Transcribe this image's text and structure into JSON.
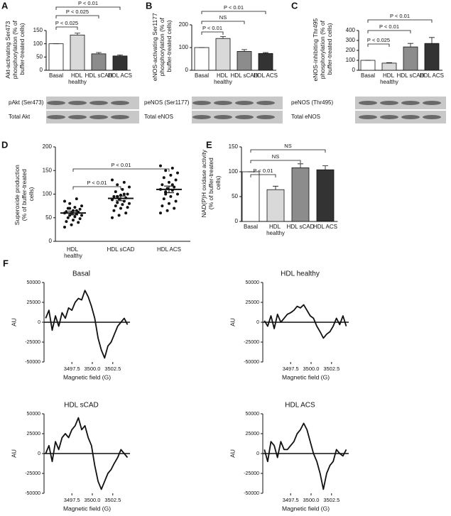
{
  "chart_data": [
    {
      "type": "bar",
      "panel": "A",
      "y_label": "Akt-activating Ser473 phosphorylation (% of buffer-treated cells)",
      "categories": [
        "Basal",
        "HDL healthy",
        "HDL sCAD",
        "HDL ACS"
      ],
      "values": [
        100,
        133,
        62,
        54
      ],
      "errors": [
        0,
        7,
        5,
        4
      ],
      "colors": [
        "#ffffff",
        "#d9d9d9",
        "#8c8c8c",
        "#333333"
      ],
      "ylim": [
        0,
        150
      ],
      "yticks": [
        0,
        50,
        100,
        150
      ],
      "comparisons": [
        {
          "groups": [
            "Basal",
            "HDL healthy"
          ],
          "label": "P < 0.025"
        },
        {
          "groups": [
            "Basal",
            "HDL sCAD"
          ],
          "label": "P < 0.025"
        },
        {
          "groups": [
            "Basal",
            "HDL ACS"
          ],
          "label": "P < 0.01"
        }
      ],
      "blot_labels": [
        "pAkt (Ser473)",
        "Total Akt"
      ]
    },
    {
      "type": "bar",
      "panel": "B",
      "y_label": "eNOS-activating Ser1177 phosphorylation (% of buffer-treated cells)",
      "categories": [
        "Basal",
        "HDL healthy",
        "HDL sCAD",
        "HDL ACS"
      ],
      "values": [
        100,
        140,
        83,
        74
      ],
      "errors": [
        0,
        8,
        8,
        4
      ],
      "colors": [
        "#ffffff",
        "#d9d9d9",
        "#8c8c8c",
        "#333333"
      ],
      "ylim": [
        0,
        200
      ],
      "yticks": [
        0,
        100,
        200
      ],
      "comparisons": [
        {
          "groups": [
            "Basal",
            "HDL healthy"
          ],
          "label": "P < 0.01"
        },
        {
          "groups": [
            "Basal",
            "HDL sCAD"
          ],
          "label": "NS"
        },
        {
          "groups": [
            "Basal",
            "HDL ACS"
          ],
          "label": "P < 0.01"
        }
      ],
      "blot_labels": [
        "peNOS (Ser1177)",
        "Total eNOS"
      ]
    },
    {
      "type": "bar",
      "panel": "C",
      "y_label": "eNOS-inhibiting Thr495 phosphorylation (% of buffer-treated cells)",
      "categories": [
        "Basal",
        "HDL healthy",
        "HDL sCAD",
        "HDL ACS"
      ],
      "values": [
        100,
        72,
        235,
        270
      ],
      "errors": [
        0,
        5,
        35,
        60
      ],
      "colors": [
        "#ffffff",
        "#d9d9d9",
        "#8c8c8c",
        "#333333"
      ],
      "ylim": [
        0,
        400
      ],
      "yticks": [
        0,
        100,
        200,
        300,
        400
      ],
      "comparisons": [
        {
          "groups": [
            "Basal",
            "HDL healthy"
          ],
          "label": "P < 0.025"
        },
        {
          "groups": [
            "Basal",
            "HDL sCAD"
          ],
          "label": "P < 0.01"
        },
        {
          "groups": [
            "Basal",
            "HDL ACS"
          ],
          "label": "P < 0.01"
        }
      ],
      "blot_labels": [
        "peNOS (Thr495)",
        "Total eNOS"
      ]
    },
    {
      "type": "strip",
      "panel": "D",
      "y_label": "Superoxide production (% of buffer-treated cells)",
      "categories": [
        "HDL healthy",
        "HDL sCAD",
        "HDL ACS"
      ],
      "points": [
        [
          85,
          90,
          80,
          75,
          72,
          70,
          68,
          65,
          63,
          62,
          60,
          60,
          58,
          55,
          55,
          52,
          50,
          48,
          45,
          42,
          40,
          35,
          30,
          65,
          70
        ],
        [
          130,
          125,
          120,
          115,
          110,
          105,
          100,
          98,
          95,
          92,
          90,
          88,
          85,
          82,
          80,
          78,
          75,
          72,
          70,
          65,
          60,
          55,
          50,
          100,
          95
        ],
        [
          160,
          155,
          150,
          145,
          140,
          135,
          130,
          125,
          120,
          115,
          112,
          110,
          108,
          105,
          100,
          95,
          90,
          85,
          80,
          75,
          70,
          65,
          60,
          120,
          100
        ]
      ],
      "means": [
        60,
        91,
        110
      ],
      "errors": [
        4,
        5,
        7
      ],
      "color": "#111111",
      "ylim": [
        0,
        200
      ],
      "yticks": [
        0,
        50,
        100,
        150,
        200
      ],
      "comparisons": [
        {
          "groups": [
            "HDL healthy",
            "HDL sCAD"
          ],
          "label": "P < 0.01"
        },
        {
          "groups": [
            "HDL healthy",
            "HDL ACS"
          ],
          "label": "P < 0.01"
        }
      ]
    },
    {
      "type": "bar",
      "panel": "E",
      "y_label": "NAD(P)H oxidase activity (% of buffer-treated cells)",
      "categories": [
        "Basal",
        "HDL healthy",
        "HDL sCAD",
        "HDL ACS"
      ],
      "values": [
        100,
        64,
        108,
        104
      ],
      "errors": [
        0,
        7,
        8,
        8
      ],
      "colors": [
        "#ffffff",
        "#d9d9d9",
        "#8c8c8c",
        "#333333"
      ],
      "ylim": [
        0,
        150
      ],
      "yticks": [
        0,
        50,
        100,
        150
      ],
      "comparisons": [
        {
          "groups": [
            "Basal",
            "HDL healthy"
          ],
          "label": "P < 0.01"
        },
        {
          "groups": [
            "Basal",
            "HDL sCAD"
          ],
          "label": "NS"
        },
        {
          "groups": [
            "Basal",
            "HDL ACS"
          ],
          "label": "NS"
        }
      ]
    },
    {
      "type": "line",
      "panel": "F",
      "title": "Basal",
      "x_label": "Magnetic field (G)",
      "y_label": "AU",
      "color": "#111111",
      "x": [
        3494.3,
        3494.7,
        3495.1,
        3495.5,
        3495.9,
        3496.3,
        3496.7,
        3497.1,
        3497.5,
        3497.9,
        3498.3,
        3498.7,
        3499.1,
        3499.5,
        3499.9,
        3500.3,
        3500.7,
        3501.1,
        3501.5,
        3501.9,
        3502.3,
        3502.7,
        3503.1,
        3503.5,
        3503.9,
        3504.3
      ],
      "values": [
        5000,
        15000,
        -10000,
        8000,
        -5000,
        12000,
        5000,
        18000,
        15000,
        25000,
        30000,
        28000,
        40000,
        32000,
        20000,
        5000,
        -20000,
        -35000,
        -45000,
        -30000,
        -25000,
        -15000,
        -5000,
        0,
        5000,
        -3000
      ],
      "xlim": [
        3494.1,
        3504.6
      ],
      "xticks": [
        3497.5,
        {
          "value": 3500,
          "label": "3500.0"
        },
        3502.5
      ],
      "ylim": [
        -50000,
        50000
      ],
      "yticks": [
        -50000,
        -25000,
        0,
        25000,
        50000
      ]
    },
    {
      "type": "line",
      "title": "HDL healthy",
      "x_label": "Magnetic field (G)",
      "y_label": "AU",
      "color": "#111111",
      "x": [
        3494.3,
        3494.7,
        3495.1,
        3495.5,
        3495.9,
        3496.3,
        3496.7,
        3497.1,
        3497.5,
        3497.9,
        3498.3,
        3498.7,
        3499.1,
        3499.5,
        3499.9,
        3500.3,
        3500.7,
        3501.1,
        3501.5,
        3501.9,
        3502.3,
        3502.7,
        3503.1,
        3503.5,
        3503.9,
        3504.3
      ],
      "values": [
        2000,
        -5000,
        8000,
        -8000,
        10000,
        0,
        5000,
        10000,
        12000,
        15000,
        20000,
        18000,
        22000,
        15000,
        8000,
        5000,
        -5000,
        -12000,
        -20000,
        -15000,
        -12000,
        -5000,
        5000,
        -3000,
        8000,
        -5000
      ],
      "xlim": [
        3494.1,
        3504.6
      ],
      "xticks": [
        3497.5,
        {
          "value": 3500,
          "label": "3500.0"
        },
        3502.5
      ],
      "ylim": [
        -50000,
        50000
      ],
      "yticks": [
        -50000,
        -25000,
        0,
        25000,
        50000
      ]
    },
    {
      "type": "line",
      "title": "HDL sCAD",
      "x_label": "Magnetic field (G)",
      "y_label": "AU",
      "color": "#111111",
      "x": [
        3494.3,
        3494.7,
        3495.1,
        3495.5,
        3495.9,
        3496.3,
        3496.7,
        3497.1,
        3497.5,
        3497.9,
        3498.3,
        3498.7,
        3499.1,
        3499.5,
        3499.9,
        3500.3,
        3500.7,
        3501.1,
        3501.5,
        3501.9,
        3502.3,
        3502.7,
        3503.1,
        3503.5,
        3503.9,
        3504.3
      ],
      "values": [
        0,
        10000,
        -10000,
        15000,
        5000,
        20000,
        25000,
        20000,
        30000,
        35000,
        45000,
        30000,
        35000,
        20000,
        10000,
        -15000,
        -35000,
        -45000,
        -35000,
        -25000,
        -20000,
        -12000,
        -5000,
        5000,
        0,
        -5000
      ],
      "xlim": [
        3494.1,
        3504.6
      ],
      "xticks": [
        3497.5,
        {
          "value": 3500,
          "label": "3500.0"
        },
        3502.5
      ],
      "ylim": [
        -50000,
        50000
      ],
      "yticks": [
        -50000,
        -25000,
        0,
        25000,
        50000
      ]
    },
    {
      "type": "line",
      "title": "HDL ACS",
      "x_label": "Magnetic field (G)",
      "y_label": "AU",
      "color": "#111111",
      "x": [
        3494.3,
        3494.7,
        3495.1,
        3495.5,
        3495.9,
        3496.3,
        3496.7,
        3497.1,
        3497.5,
        3497.9,
        3498.3,
        3498.7,
        3499.1,
        3499.5,
        3499.9,
        3500.3,
        3500.7,
        3501.1,
        3501.5,
        3501.9,
        3502.3,
        3502.7,
        3503.1,
        3503.5,
        3503.9,
        3504.3
      ],
      "values": [
        5000,
        -10000,
        15000,
        10000,
        -5000,
        15000,
        5000,
        5000,
        10000,
        15000,
        25000,
        30000,
        38000,
        30000,
        15000,
        0,
        -10000,
        -25000,
        -45000,
        -25000,
        -15000,
        -10000,
        5000,
        0,
        -3000,
        5000
      ],
      "xlim": [
        3494.1,
        3504.6
      ],
      "xticks": [
        3497.5,
        {
          "value": 3500,
          "label": "3500.0"
        },
        3502.5
      ],
      "ylim": [
        -50000,
        50000
      ],
      "yticks": [
        -50000,
        -25000,
        0,
        25000,
        50000
      ]
    }
  ]
}
